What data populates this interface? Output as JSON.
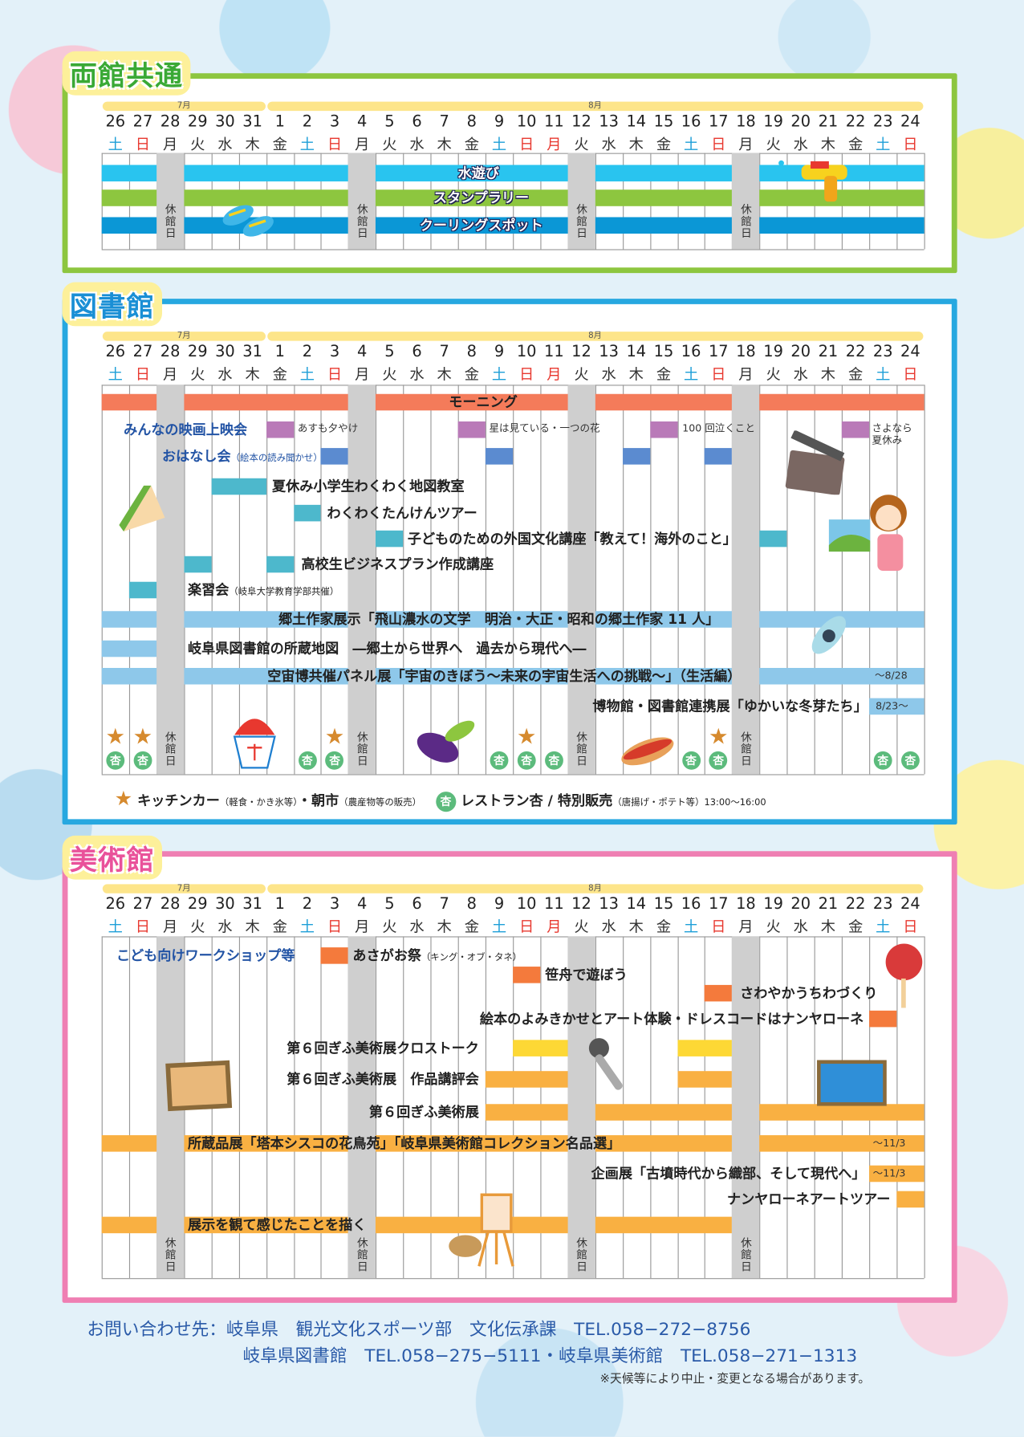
{
  "months": [
    {
      "label": "7月",
      "from": "7/26",
      "to": "7/31"
    },
    {
      "label": "8月",
      "from": "8/1",
      "to": "8/24"
    }
  ],
  "days": [
    {
      "m": "7",
      "d": "26",
      "w": "土",
      "t": "sat"
    },
    {
      "m": "7",
      "d": "27",
      "w": "日",
      "t": "sun"
    },
    {
      "m": "7",
      "d": "28",
      "w": "月",
      "t": ""
    },
    {
      "m": "7",
      "d": "29",
      "w": "火",
      "t": ""
    },
    {
      "m": "7",
      "d": "30",
      "w": "水",
      "t": ""
    },
    {
      "m": "7",
      "d": "31",
      "w": "木",
      "t": ""
    },
    {
      "m": "8",
      "d": "1",
      "w": "金",
      "t": ""
    },
    {
      "m": "8",
      "d": "2",
      "w": "土",
      "t": "sat"
    },
    {
      "m": "8",
      "d": "3",
      "w": "日",
      "t": "sun"
    },
    {
      "m": "8",
      "d": "4",
      "w": "月",
      "t": ""
    },
    {
      "m": "8",
      "d": "5",
      "w": "火",
      "t": ""
    },
    {
      "m": "8",
      "d": "6",
      "w": "水",
      "t": ""
    },
    {
      "m": "8",
      "d": "7",
      "w": "木",
      "t": ""
    },
    {
      "m": "8",
      "d": "8",
      "w": "金",
      "t": ""
    },
    {
      "m": "8",
      "d": "9",
      "w": "土",
      "t": "sat"
    },
    {
      "m": "8",
      "d": "10",
      "w": "日",
      "t": "sun"
    },
    {
      "m": "8",
      "d": "11",
      "w": "月",
      "t": "sun"
    },
    {
      "m": "8",
      "d": "12",
      "w": "火",
      "t": ""
    },
    {
      "m": "8",
      "d": "13",
      "w": "水",
      "t": ""
    },
    {
      "m": "8",
      "d": "14",
      "w": "木",
      "t": ""
    },
    {
      "m": "8",
      "d": "15",
      "w": "金",
      "t": ""
    },
    {
      "m": "8",
      "d": "16",
      "w": "土",
      "t": "sat"
    },
    {
      "m": "8",
      "d": "17",
      "w": "日",
      "t": "sun"
    },
    {
      "m": "8",
      "d": "18",
      "w": "月",
      "t": ""
    },
    {
      "m": "8",
      "d": "19",
      "w": "火",
      "t": ""
    },
    {
      "m": "8",
      "d": "20",
      "w": "水",
      "t": ""
    },
    {
      "m": "8",
      "d": "21",
      "w": "木",
      "t": ""
    },
    {
      "m": "8",
      "d": "22",
      "w": "金",
      "t": ""
    },
    {
      "m": "8",
      "d": "23",
      "w": "土",
      "t": "sat"
    },
    {
      "m": "8",
      "d": "24",
      "w": "日",
      "t": "sun"
    }
  ],
  "colors": {
    "sat": "#1e9fd8",
    "sun": "#e8382f",
    "weekday": "#333333",
    "closed": "#cfcfcf"
  },
  "closed_days": [
    "7/28",
    "8/4",
    "8/12",
    "8/18"
  ],
  "closed_label": "休館日",
  "sections": [
    {
      "id": "common",
      "title": "両館共通",
      "border": "#8dc63f",
      "title_color": "#3aa935",
      "rows": [
        {
          "id": "water",
          "label": "水遊び",
          "color": "#29c4ef",
          "bars": [
            [
              "7/26",
              "8/24"
            ]
          ]
        },
        {
          "id": "stamp",
          "label": "スタンプラリー",
          "color": "#8dc63f",
          "bars": [
            [
              "7/26",
              "8/24"
            ]
          ]
        },
        {
          "id": "cool",
          "label": "クーリングスポット",
          "color": "#0b97d6",
          "bars": [
            [
              "7/26",
              "8/24"
            ]
          ]
        }
      ]
    },
    {
      "id": "library",
      "title": "図書館",
      "border": "#27a8e0",
      "title_color": "#1a8fd5",
      "rows": [
        {
          "id": "morning",
          "label": "モーニング",
          "color": "#f47b5a",
          "bars": [
            [
              "7/26",
              "8/24"
            ]
          ]
        },
        {
          "id": "movie",
          "label": "みんなの映画上映会",
          "color": "#b97ab8",
          "bars": [
            [
              "8/1",
              "8/1"
            ],
            [
              "8/8",
              "8/8"
            ],
            [
              "8/15",
              "8/15"
            ],
            [
              "8/22",
              "8/22"
            ]
          ],
          "captions": [
            "あすも夕やけ",
            "星は見ている・一つの花",
            "100 回泣くこと",
            "さよなら\n夏休み"
          ]
        },
        {
          "id": "ohanashi",
          "label": "おはなし会",
          "note": "（絵本の読み聞かせ）",
          "color": "#5b8bd0",
          "bars": [
            [
              "8/3",
              "8/3"
            ],
            [
              "8/9",
              "8/9"
            ],
            [
              "8/14",
              "8/14"
            ],
            [
              "8/17",
              "8/17"
            ]
          ]
        },
        {
          "id": "map",
          "label": "夏休み小学生わくわく地図教室",
          "color": "#4db8cc",
          "bars": [
            [
              "7/30",
              "7/31"
            ]
          ]
        },
        {
          "id": "tour",
          "label": "わくわくたんけんツアー",
          "color": "#4db8cc",
          "bars": [
            [
              "8/2",
              "8/2"
            ]
          ]
        },
        {
          "id": "foreign",
          "label": "子どものための外国文化講座「教えて！海外のこと」",
          "color": "#4db8cc",
          "bars": [
            [
              "8/5",
              "8/5"
            ],
            [
              "8/19",
              "8/19"
            ]
          ]
        },
        {
          "id": "hs",
          "label": "高校生ビジネスプラン作成講座",
          "color": "#4db8cc",
          "bars": [
            [
              "7/29",
              "7/29"
            ],
            [
              "8/1",
              "8/1"
            ]
          ]
        },
        {
          "id": "gakushu",
          "label": "楽習会",
          "note": "（岐阜大学教育学部共催）",
          "color": "#4db8cc",
          "bars": [
            [
              "7/27",
              "7/27"
            ]
          ]
        },
        {
          "id": "kyodo",
          "label": "郷土作家展示「飛山濃水の文学　明治・大正・昭和の郷土作家 11 人」",
          "color": "#8ec8ea",
          "bars": [
            [
              "7/26",
              "8/24"
            ]
          ]
        },
        {
          "id": "chizu",
          "label": "岐阜県図書館の所蔵地図　―郷土から世界へ　過去から現代へ―",
          "color": "#8ec8ea",
          "bars": [
            [
              "7/26",
              "7/27"
            ]
          ]
        },
        {
          "id": "uchu",
          "label": "空宙博共催パネル展「宇宙のきぼう〜未来の宇宙生活への挑戦〜」（生活編）",
          "color": "#8ec8ea",
          "bars": [
            [
              "7/26",
              "8/24"
            ]
          ],
          "suffix": "〜8/28"
        },
        {
          "id": "fuyume",
          "label": "博物館・図書館連携展「ゆかいな冬芽たち」",
          "color": "#8ec8ea",
          "bars": [
            [
              "8/23",
              "8/24"
            ]
          ],
          "suffix": "8/23〜"
        }
      ],
      "star_days": [
        "7/26",
        "7/27",
        "8/3",
        "8/10",
        "8/17"
      ],
      "anzu_days": [
        "7/26",
        "7/27",
        "8/2",
        "8/3",
        "8/9",
        "8/10",
        "8/11",
        "8/16",
        "8/17",
        "8/23",
        "8/24"
      ],
      "anzu_mark": "杏",
      "legend": {
        "kitchen": "キッチンカー",
        "kitchen_note": "（軽食・かき氷等）",
        "asaichi": "・朝市",
        "asaichi_note": "（農産物等の販売）",
        "restaurant": "レストラン杏 / 特別販売",
        "restaurant_note": "（唐揚げ・ポテト等）13:00〜16:00"
      }
    },
    {
      "id": "museum",
      "title": "美術館",
      "border": "#ef7fb3",
      "title_color": "#e9529a",
      "rows": [
        {
          "id": "ws",
          "label": "こども向けワークショップ等",
          "color": "",
          "bars": []
        },
        {
          "id": "asagao",
          "label": "あさがお祭",
          "note": "（キング・オブ・タネ）",
          "color": "#f47a3c",
          "bars": [
            [
              "8/3",
              "8/3"
            ]
          ]
        },
        {
          "id": "sasabune",
          "label": "笹舟で遊ぼう",
          "color": "#f47a3c",
          "bars": [
            [
              "8/10",
              "8/10"
            ]
          ]
        },
        {
          "id": "uchiwa",
          "label": "さわやかうちわづくり",
          "color": "#f47a3c",
          "bars": [
            [
              "8/17",
              "8/17"
            ]
          ]
        },
        {
          "id": "ehon",
          "label": "絵本のよみきかせとアート体験・ドレスコードはナンヤローネ",
          "color": "#f47a3c",
          "bars": [
            [
              "8/23",
              "8/23"
            ]
          ]
        },
        {
          "id": "cross",
          "label": "第６回ぎふ美術展クロストーク",
          "color": "#fdd835",
          "bars": [
            [
              "8/10",
              "8/11"
            ],
            [
              "8/16",
              "8/17"
            ]
          ]
        },
        {
          "id": "kohyo",
          "label": "第６回ぎふ美術展　作品講評会",
          "color": "#f9b042",
          "bars": [
            [
              "8/9",
              "8/11"
            ],
            [
              "8/16",
              "8/17"
            ]
          ]
        },
        {
          "id": "gifu",
          "label": "第６回ぎふ美術展",
          "color": "#f9b042",
          "bars": [
            [
              "8/9",
              "8/24"
            ]
          ]
        },
        {
          "id": "shozo",
          "label": "所蔵品展「塔本シスコの花鳥苑」「岐阜県美術館コレクション名品選」",
          "color": "#f9b042",
          "bars": [
            [
              "7/26",
              "8/24"
            ]
          ],
          "suffix": "〜11/3"
        },
        {
          "id": "kikaku",
          "label": "企画展「古墳時代から織部、そして現代へ」",
          "color": "#f9b042",
          "bars": [
            [
              "8/23",
              "8/24"
            ]
          ],
          "suffix": "〜11/3"
        },
        {
          "id": "nanya",
          "label": "ナンヤローネアートツアー",
          "color": "#f9b042",
          "bars": [
            [
              "8/24",
              "8/24"
            ]
          ]
        },
        {
          "id": "egaku",
          "label": "展示を観て感じたことを描く",
          "color": "#f9b042",
          "bars": [
            [
              "7/26",
              "8/17"
            ]
          ]
        }
      ]
    }
  ],
  "footer": {
    "contact": "お問い合わせ先：岐阜県　観光文化スポーツ部　文化伝承課　TEL.058−272−8756",
    "venues": "岐阜県図書館　TEL.058−275−5111・岐阜県美術館　TEL.058−271−1313",
    "note": "※天候等により中止・変更となる場合があります。"
  }
}
